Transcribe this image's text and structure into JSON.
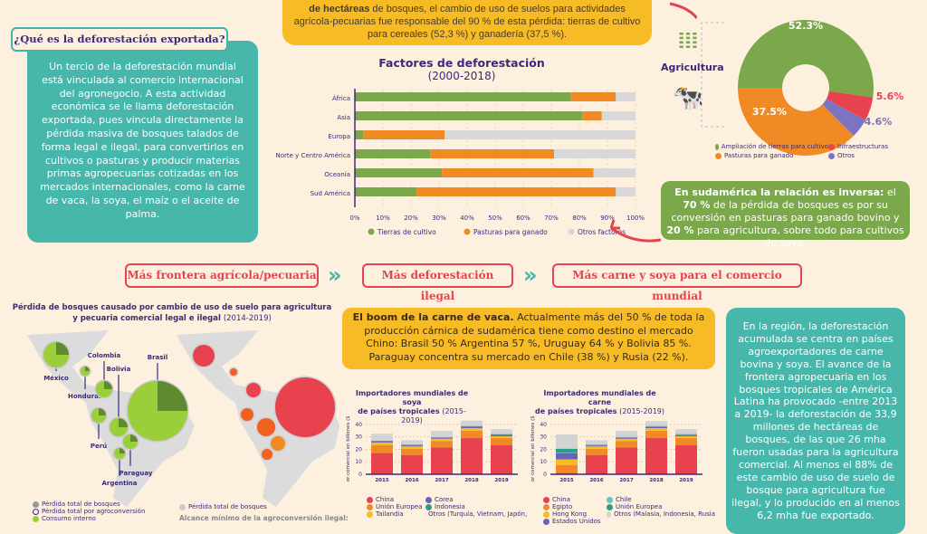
{
  "top_box": {
    "line1_bold": "de hectáreas",
    "line1": " de bosques, el cambio de uso de suelos para actividades agrícola-pecuarias fue responsable del 90 % de esta pérdida: tierras de cultivo para cereales (52,3 %) y ganadería (37,5 %)."
  },
  "what_is": {
    "label": "¿Qué es la deforestación exportada?",
    "text": "Un tercio de la deforestación mundial está vinculada al comercio internacional del agronegocio. A esta actividad económica se le llama deforestación exportada, pues vincula directamente la pérdida masiva de bosques talados de forma legal e ilegal, para convertirlos en cultivos o pasturas y producir materias primas agropecuarias cotizadas en los mercados internacionales, como la carne de vaca, la soya, el maíz o el aceite de palma."
  },
  "south_america_box": {
    "bold": "En sudamérica la relación es inversa:",
    "t1": " el ",
    "b2": "70 %",
    "t2": " de la pérdida de bosques es por su conversión en pasturas para ganado bovino y ",
    "b3": "20 %",
    "t3": " para agricultura, sobre todo para cultivos de soya."
  },
  "flow": {
    "step1": "Más frontera agrícola/pecuaria",
    "step2": "Más deforestación ilegal",
    "step3": "Más carne y soya para el comercio mundial",
    "chevron": "»"
  },
  "beef_box": {
    "bold": "El boom de la carne de vaca.",
    "text": " Actualmente más del 50 % de toda la producción cárnica de sudamérica tiene como destino el mercado Chino: Brasil 50 % Argentina 57 %, Uruguay 64 % y Bolivia 85 %. Paraguay concentra su mercado en Chile (38 %) y Rusia (22 %)."
  },
  "region_box": {
    "text": "En la región, la deforestación acumulada se centra en países agroexportadores de carne bovina y soya. El avance de la frontera agropecuaria en los bosques tropicales de América Latina ha provocado -entre 2013 a 2019- la deforestación de 33,9 millones de hectáreas de bosques, de las que 26 mha fueron usadas para la agricultura comercial. Al menos el 88% de este cambio de uso de suelo de bosque para agricultura fue ilegal, y lo producido en al menos 6,2 mha fue exportado."
  },
  "map": {
    "title_bold": "Pérdida de bosques causado por cambio de uso de suelo para agricultura y pecuaria comercial legal e ilegal",
    "title_years": "(2014-2019)",
    "countries": [
      "México",
      "Honduras",
      "Colombia",
      "Bolivia",
      "Brasil",
      "Perú",
      "Paraguay",
      "Argentina"
    ],
    "legend_left": [
      "Pérdida total de bosques",
      "Pérdida total por agroconversión",
      "Consumo interno"
    ],
    "legend_right": [
      "Pérdida total de bosques",
      "Alcance mínimo de la agroconversión ilegal:"
    ]
  },
  "agri_label": "Agricultura",
  "chart_data": [
    {
      "type": "bar",
      "orientation": "horizontal",
      "stacked": true,
      "title": "Factores de deforestación",
      "subtitle": "(2000-2018)",
      "categories": [
        "África",
        "Asia",
        "Europa",
        "Norte y Centro América",
        "Oceanía",
        "Sud América"
      ],
      "series": [
        {
          "name": "Tierras de cultivo",
          "color": "#7aa84a",
          "values": [
            77,
            81,
            3,
            27,
            31,
            22
          ]
        },
        {
          "name": "Pasturas para ganado",
          "color": "#f08a24",
          "values": [
            16,
            7,
            29,
            44,
            54,
            71
          ]
        },
        {
          "name": "Otros factores",
          "color": "#d8d8d8",
          "values": [
            7,
            12,
            68,
            29,
            15,
            7
          ]
        }
      ],
      "xticks": [
        "0%",
        "10%",
        "20%",
        "30%",
        "40%",
        "50%",
        "60%",
        "70%",
        "80%",
        "90%",
        "100%"
      ],
      "xlim": [
        0,
        100
      ],
      "grid": true,
      "legend": "bottom"
    },
    {
      "type": "pie",
      "donut": true,
      "labels": [
        "Ampliación de tierras para cultivo",
        "Pasturas para ganado",
        "Infraestructuras",
        "Otros"
      ],
      "values": [
        52.3,
        37.5,
        5.6,
        4.6
      ],
      "value_labels": [
        "52.3%",
        "37.5%",
        "5.6%",
        "4.6%"
      ],
      "colors": [
        "#7aa84a",
        "#f08a24",
        "#e8424f",
        "#7a74c2"
      ],
      "legend": "bottom"
    },
    {
      "type": "bar",
      "stacked": true,
      "title": "Importadores mundiales de soya",
      "title2": "de países tropicales",
      "years": "(2015-2019)",
      "ylabel": "Valor comercial en billones ($US)",
      "categories": [
        "2015",
        "2016",
        "2017",
        "2018",
        "2019"
      ],
      "yticks": [
        "0",
        "10",
        "20",
        "30",
        "40"
      ],
      "ylim": [
        0,
        45
      ],
      "series": [
        {
          "name": "China",
          "color": "#e8424f",
          "values": [
            17,
            15.5,
            21.5,
            29,
            23.5
          ]
        },
        {
          "name": "Unión Europea",
          "color": "#f08a24",
          "values": [
            6.5,
            5,
            5,
            6,
            5.5
          ]
        },
        {
          "name": "Tailandia",
          "color": "#f6bb25",
          "values": [
            2,
            1.8,
            2,
            2,
            1.5
          ]
        },
        {
          "name": "Corea",
          "color": "#6a62b8",
          "values": [
            0.8,
            0.8,
            0.7,
            1,
            1
          ]
        },
        {
          "name": "Indonesia",
          "color": "#2e9c8c",
          "values": [
            0.7,
            0.7,
            0.5,
            0.7,
            0.7
          ]
        },
        {
          "name": "Otros (Turquía, Vietnam, Japón,",
          "color": "#d3d3d3",
          "values": [
            5.5,
            3.5,
            5,
            4.3,
            4
          ]
        }
      ]
    },
    {
      "type": "bar",
      "stacked": true,
      "title": "Importadores mundiales de carne",
      "title2": "de países tropicales",
      "years": "(2015-2019)",
      "ylabel": "Valor comercial en billones ($US)",
      "categories": [
        "2015",
        "2016",
        "2017",
        "2018",
        "2019"
      ],
      "yticks": [
        "0",
        "10",
        "20",
        "30",
        "40"
      ],
      "ylim": [
        0,
        45
      ],
      "series": [
        {
          "name": "China",
          "color": "#e8424f",
          "values": [
            1,
            15.5,
            21.5,
            29,
            23.5
          ]
        },
        {
          "name": "Egipto",
          "color": "#f08a24",
          "values": [
            6.5,
            5,
            5,
            6,
            5.5
          ]
        },
        {
          "name": "Hong Kong",
          "color": "#f6bb25",
          "values": [
            4.5,
            1.8,
            2,
            2,
            1.5
          ]
        },
        {
          "name": "Estados Unidos",
          "color": "#6a62b8",
          "values": [
            5,
            0.8,
            0.7,
            1,
            1
          ]
        },
        {
          "name": "Chile",
          "color": "#5bc8bb",
          "values": [
            0.5,
            0.2,
            0.2,
            0.2,
            0.2
          ]
        },
        {
          "name": "Unión Europea",
          "color": "#2e9c8c",
          "values": [
            3,
            0.5,
            0.5,
            0.5,
            0.5
          ]
        },
        {
          "name": "Otros (Malasia, Indonesia, Rusia",
          "color": "#d3d3d3",
          "values": [
            11.5,
            3.5,
            5,
            4,
            4
          ]
        }
      ]
    }
  ]
}
